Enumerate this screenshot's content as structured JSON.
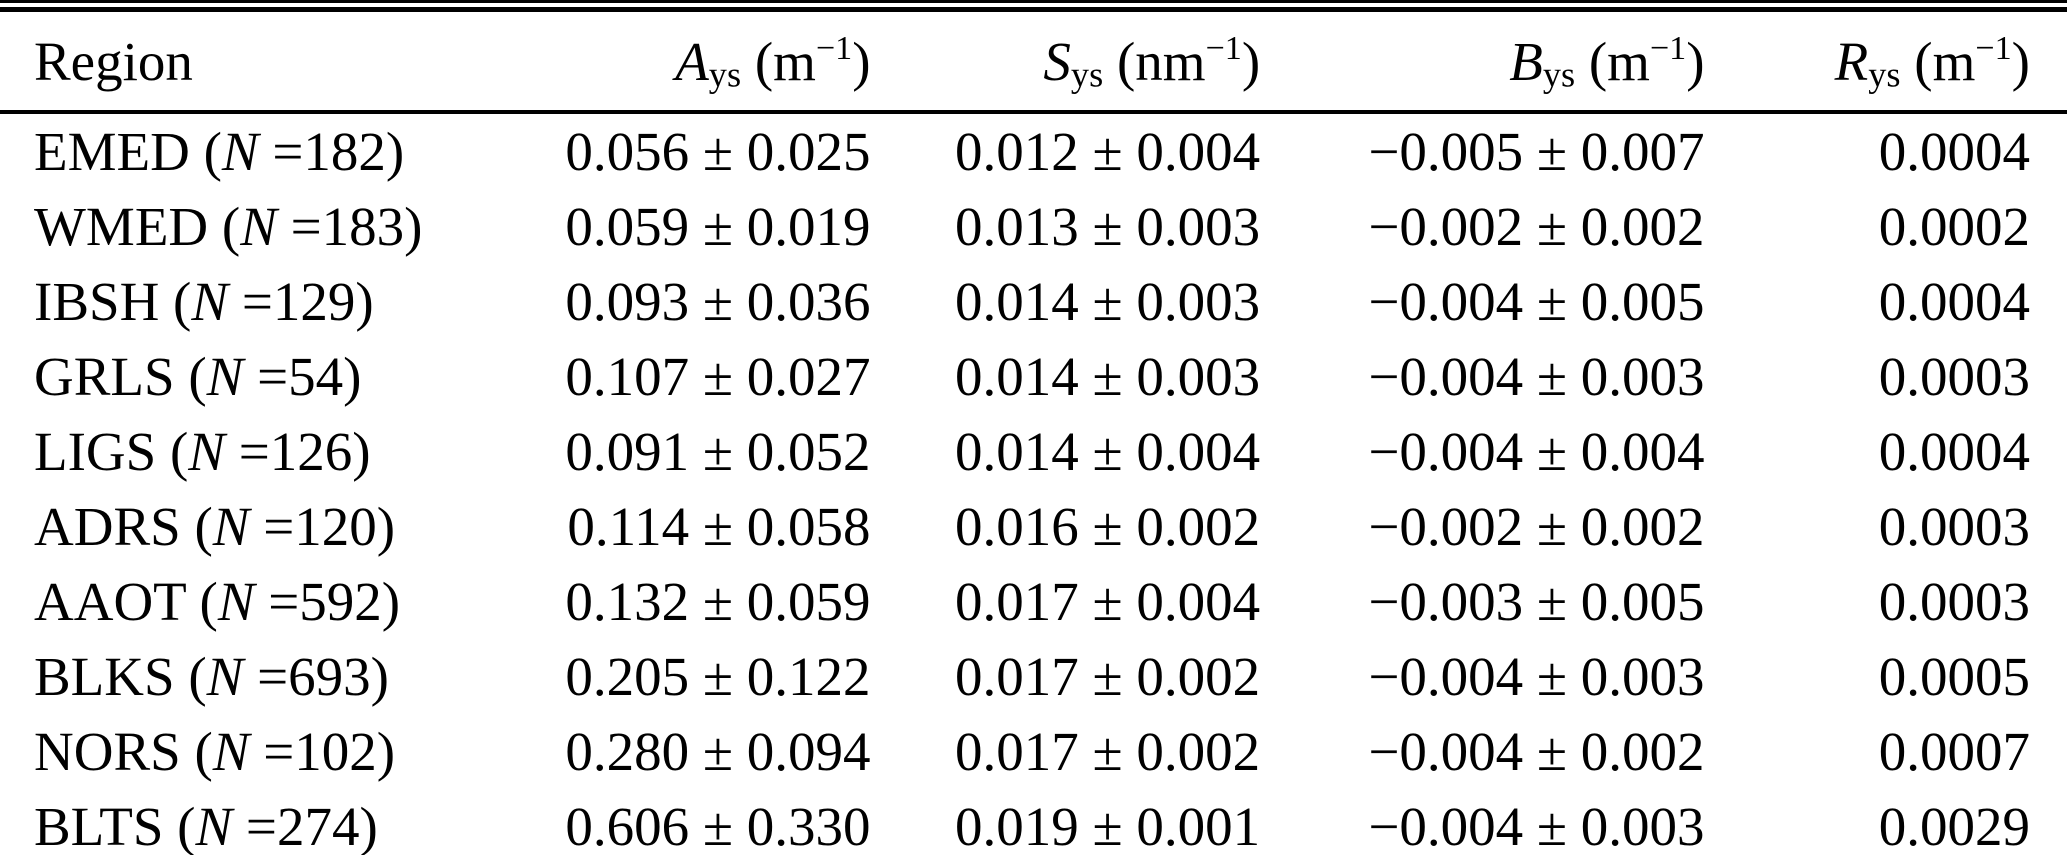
{
  "table": {
    "headers": [
      {
        "label": "Region"
      },
      {
        "var": "A",
        "sub": "ys",
        "unit_pre": " (m",
        "exp": "−1",
        "unit_close": ")"
      },
      {
        "var": "S",
        "sub": "ys",
        "unit_pre": " (nm",
        "exp": "−1",
        "unit_close": ")"
      },
      {
        "var": "B",
        "sub": "ys",
        "unit_pre": " (m",
        "exp": "−1",
        "unit_close": ")"
      },
      {
        "var": "R",
        "sub": "ys",
        "unit_pre": " (m",
        "exp": "−1",
        "unit_close": ")"
      }
    ],
    "rows": [
      {
        "region": "EMED",
        "n": "182",
        "region_pre": "EMED (",
        "n_label": "N",
        "region_post": " =182)",
        "a": "0.056 ± 0.025",
        "s": "0.012 ± 0.004",
        "b": "−0.005 ± 0.007",
        "r": "0.0004"
      },
      {
        "region": "WMED",
        "n": "183",
        "region_pre": "WMED (",
        "n_label": "N",
        "region_post": " =183)",
        "a": "0.059 ± 0.019",
        "s": "0.013 ± 0.003",
        "b": "−0.002 ± 0.002",
        "r": "0.0002"
      },
      {
        "region": "IBSH",
        "n": "129",
        "region_pre": "IBSH (",
        "n_label": "N",
        "region_post": " =129)",
        "a": "0.093 ± 0.036",
        "s": "0.014 ± 0.003",
        "b": "−0.004 ± 0.005",
        "r": "0.0004"
      },
      {
        "region": "GRLS",
        "n": "54",
        "region_pre": "GRLS (",
        "n_label": "N",
        "region_post": " =54)",
        "a": "0.107 ± 0.027",
        "s": "0.014 ± 0.003",
        "b": "−0.004 ± 0.003",
        "r": "0.0003"
      },
      {
        "region": "LIGS",
        "n": "126",
        "region_pre": "LIGS (",
        "n_label": "N",
        "region_post": " =126)",
        "a": "0.091 ± 0.052",
        "s": "0.014 ± 0.004",
        "b": "−0.004 ± 0.004",
        "r": "0.0004"
      },
      {
        "region": "ADRS",
        "n": "120",
        "region_pre": "ADRS (",
        "n_label": "N",
        "region_post": " =120)",
        "a": "0.114 ± 0.058",
        "s": "0.016 ± 0.002",
        "b": "−0.002 ± 0.002",
        "r": "0.0003"
      },
      {
        "region": "AAOT",
        "n": "592",
        "region_pre": "AAOT (",
        "n_label": "N",
        "region_post": " =592)",
        "a": "0.132 ± 0.059",
        "s": "0.017 ± 0.004",
        "b": "−0.003 ± 0.005",
        "r": "0.0003"
      },
      {
        "region": "BLKS",
        "n": "693",
        "region_pre": "BLKS (",
        "n_label": "N",
        "region_post": " =693)",
        "a": "0.205 ± 0.122",
        "s": "0.017 ± 0.002",
        "b": "−0.004 ± 0.003",
        "r": "0.0005"
      },
      {
        "region": "NORS",
        "n": "102",
        "region_pre": "NORS (",
        "n_label": "N",
        "region_post": " =102)",
        "a": "0.280 ± 0.094",
        "s": "0.017 ± 0.002",
        "b": "−0.004 ± 0.002",
        "r": "0.0007"
      },
      {
        "region": "BLTS",
        "n": "274",
        "region_pre": "BLTS (",
        "n_label": "N",
        "region_post": " =274)",
        "a": "0.606 ± 0.330",
        "s": "0.019 ± 0.001",
        "b": "−0.004 ± 0.003",
        "r": "0.0029"
      }
    ],
    "colors": {
      "text": "#000000",
      "background": "#ffffff",
      "rule": "#000000"
    }
  }
}
